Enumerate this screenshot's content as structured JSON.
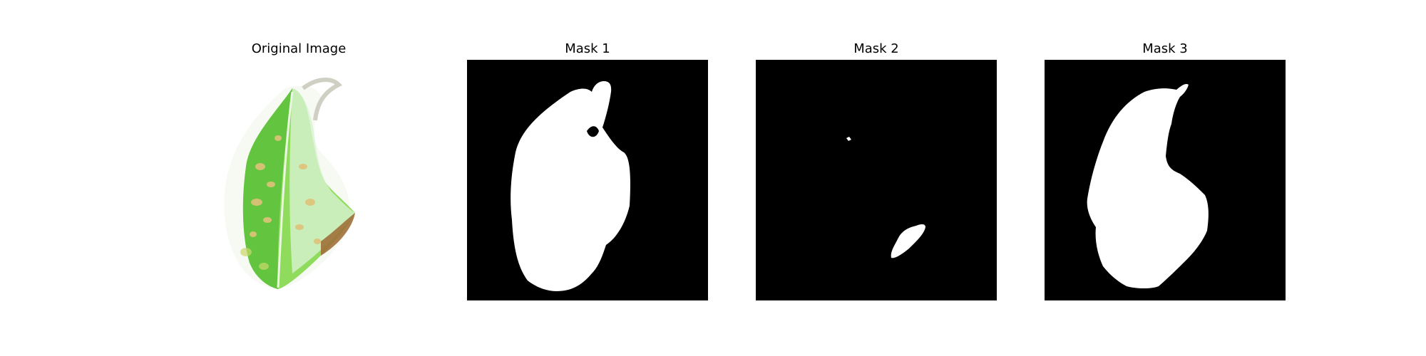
{
  "figure": {
    "panels": [
      {
        "title": "Original Image"
      },
      {
        "title": "Mask 1"
      },
      {
        "title": "Mask 2"
      },
      {
        "title": "Mask 3"
      }
    ]
  },
  "colors": {
    "mask_background": "#000000",
    "mask_foreground": "#ffffff",
    "leaf_green": "#8fdc5c",
    "leaf_dark_green": "#5cbf3a",
    "leaf_lesion": "#e0c27a",
    "leaf_brown": "#a0703a"
  }
}
